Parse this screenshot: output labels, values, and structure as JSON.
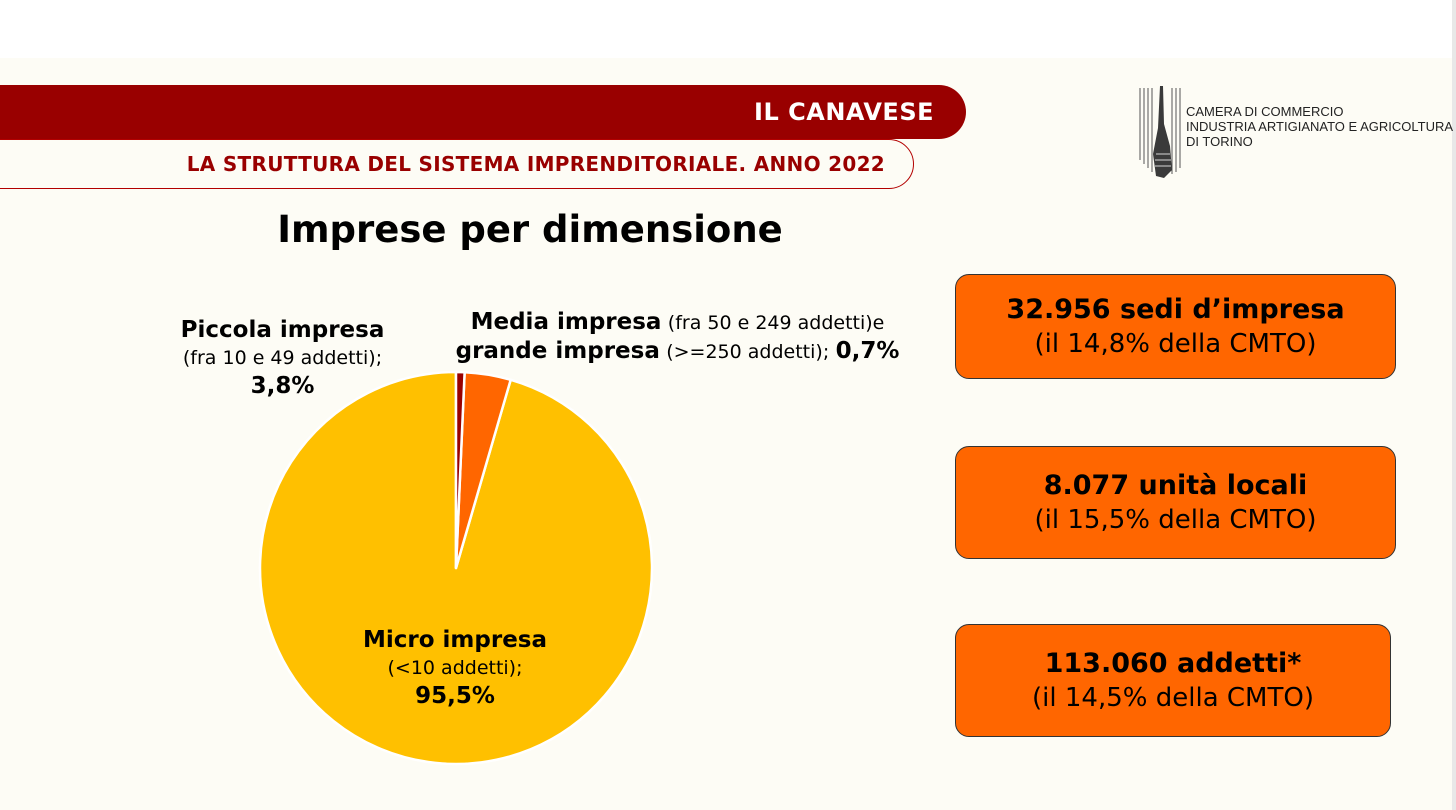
{
  "header": {
    "region": "IL CANAVESE",
    "subtitle": "LA STRUTTURA DEL SISTEMA IMPRENDITORIALE. ANNO 2022"
  },
  "logo": {
    "lines": [
      "CAMERA DI COMMERCIO",
      "INDUSTRIA ARTIGIANATO E AGRICOLTURA",
      "DI TORINO"
    ]
  },
  "chart_data": {
    "type": "pie",
    "title": "Imprese per dimensione",
    "start_angle_deg": 0,
    "direction": "counterclockwise",
    "slices": [
      {
        "name": "Micro impresa",
        "detail": "(<10 addetti);",
        "value": 95.5,
        "label": "95,5%",
        "color": "#ffc000"
      },
      {
        "name": "Piccola impresa",
        "detail": "(fra 10 e 49 addetti);",
        "value": 3.8,
        "label": "3,8%",
        "color": "#ff6600"
      },
      {
        "name": "Media impresa",
        "detail": "(fra 50 e 249 addetti)e",
        "name2": "grande impresa",
        "detail2": "(>=250 addetti);",
        "value": 0.7,
        "label": "0,7%",
        "color": "#990000"
      }
    ],
    "slice_border_color": "#ffffff"
  },
  "stats": [
    {
      "main": "32.956 sedi d’impresa",
      "sub": "(il 14,8% della CMTO)"
    },
    {
      "main": "8.077 unità locali",
      "sub": "(il 15,5% della CMTO)"
    },
    {
      "main": "113.060 addetti*",
      "sub": "(il 14,5% della CMTO)"
    }
  ]
}
